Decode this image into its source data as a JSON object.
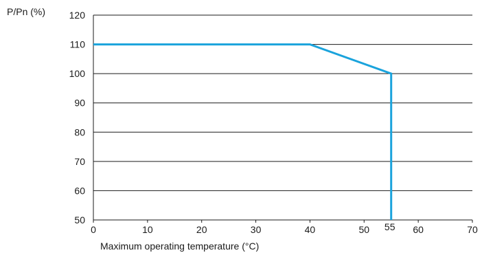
{
  "chart_data": {
    "type": "line",
    "title": "",
    "ylabel": "P/Pn (%)",
    "xlabel": "Maximum operating temperature (°C)",
    "xlim": [
      0,
      70
    ],
    "ylim": [
      50,
      120
    ],
    "x_ticks": [
      "0",
      "10",
      "20",
      "30",
      "40",
      "50",
      "60",
      "70"
    ],
    "y_ticks": [
      "50",
      "60",
      "70",
      "80",
      "90",
      "100",
      "110",
      "120"
    ],
    "extra_x_tick": "55",
    "grid": "horizontal",
    "series": [
      {
        "color": "#1aa3dc",
        "points": [
          [
            0,
            110
          ],
          [
            40,
            110
          ],
          [
            55,
            100
          ],
          [
            55,
            50
          ]
        ]
      }
    ],
    "grid_color": "#1a1a1a",
    "axis_color": "#1a1a1a"
  }
}
